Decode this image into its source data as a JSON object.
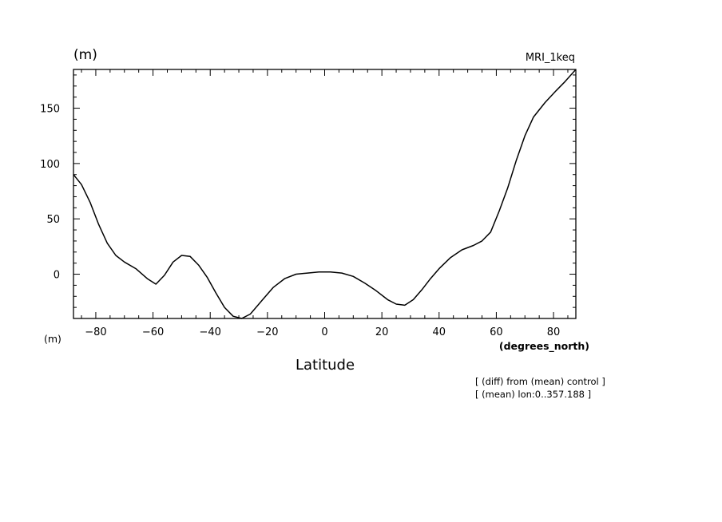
{
  "chart_data": {
    "type": "line",
    "title": "",
    "experiment": "MRI_1keq",
    "ylabel_top": "(m)",
    "ylabel_bottom": "(m)",
    "xlabel": "Latitude",
    "xunit": "(degrees_north)",
    "notes": [
      "[ (diff) from (mean) control ]",
      "[ (mean) lon:0..357.188 ]"
    ],
    "xlim": [
      -87.8,
      87.8
    ],
    "ylim": [
      -40,
      185
    ],
    "xticks": [
      -80,
      -60,
      -40,
      -20,
      0,
      20,
      40,
      60,
      80
    ],
    "xtick_labels": [
      "−80",
      "−60",
      "−40",
      "−20",
      "0",
      "20",
      "40",
      "60",
      "80"
    ],
    "yticks": [
      0,
      50,
      100,
      150
    ],
    "ytick_labels": [
      "0",
      "50",
      "100",
      "150"
    ],
    "grid": false,
    "series": [
      {
        "name": "",
        "x": [
          -87.8,
          -85,
          -82,
          -79,
          -76,
          -73,
          -70,
          -66,
          -62,
          -59,
          -56,
          -53,
          -50,
          -47,
          -44,
          -41,
          -38,
          -35,
          -32,
          -29,
          -26,
          -22,
          -18,
          -14,
          -10,
          -6,
          -2,
          2,
          6,
          10,
          14,
          18,
          22,
          25,
          28,
          31,
          34,
          37,
          40,
          44,
          48,
          52,
          55,
          58,
          61,
          64,
          67,
          70,
          73,
          77,
          81,
          84,
          87.8
        ],
        "y": [
          90,
          81,
          65,
          45,
          28,
          17,
          11,
          5,
          -4,
          -9,
          -1,
          11,
          17,
          16,
          8,
          -3,
          -17,
          -30,
          -38,
          -40,
          -36,
          -24,
          -12,
          -4,
          0,
          1,
          2,
          2,
          1,
          -2,
          -8,
          -15,
          -23,
          -27,
          -28,
          -23,
          -14,
          -4,
          5,
          15,
          22,
          26,
          30,
          38,
          57,
          78,
          103,
          125,
          142,
          155,
          166,
          174,
          185
        ]
      }
    ]
  }
}
